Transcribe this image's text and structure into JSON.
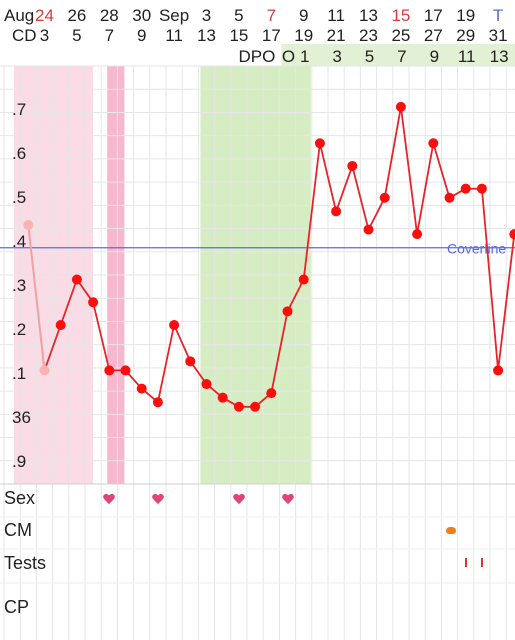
{
  "header": {
    "row1_label": "Aug",
    "row2_label": "CD",
    "dpo_label": "DPO",
    "dates": [
      {
        "text": "24",
        "color": "#d83c3c"
      },
      {
        "text": "26",
        "color": "#222222"
      },
      {
        "text": "28",
        "color": "#222222"
      },
      {
        "text": "30",
        "color": "#222222"
      },
      {
        "text": "Sep",
        "color": "#222222"
      },
      {
        "text": "3",
        "color": "#222222"
      },
      {
        "text": "5",
        "color": "#222222"
      },
      {
        "text": "7",
        "color": "#d83c3c"
      },
      {
        "text": "9",
        "color": "#222222"
      },
      {
        "text": "11",
        "color": "#222222"
      },
      {
        "text": "13",
        "color": "#222222"
      },
      {
        "text": "15",
        "color": "#d83c3c"
      },
      {
        "text": "17",
        "color": "#222222"
      },
      {
        "text": "19",
        "color": "#222222"
      },
      {
        "text": "T",
        "color": "#5b6bd6"
      }
    ],
    "cycle_days": [
      "3",
      "5",
      "7",
      "9",
      "11",
      "13",
      "15",
      "17",
      "19",
      "21",
      "23",
      "25",
      "27",
      "29",
      "31"
    ],
    "dpo": [
      "O",
      "1",
      "3",
      "5",
      "7",
      "9",
      "11",
      "13"
    ]
  },
  "y_axis_labels": [
    ".7",
    ".6",
    ".5",
    ".4",
    ".3",
    ".2",
    ".1",
    "36",
    ".9"
  ],
  "coverline_label": "Coverline",
  "rows": {
    "sex": "Sex",
    "cm": "CM",
    "tests": "Tests",
    "cp": "CP"
  },
  "colors": {
    "period_light": "#fbdbe6",
    "period_dark": "#f6b7cf",
    "fertile": "#d6ecc2",
    "temp_line": "#e8232a",
    "temp_dot": "#ff0c0c",
    "coverline": "#5a6be0"
  },
  "chart_data": {
    "type": "line",
    "title": "",
    "y_unit_note": "",
    "ylim": [
      35.85,
      36.77
    ],
    "coverline": 36.37,
    "x": [
      2,
      3,
      4,
      5,
      6,
      7,
      8,
      9,
      10,
      11,
      12,
      13,
      14,
      15,
      16,
      17,
      18,
      19,
      20,
      21,
      22,
      23,
      24,
      25,
      26,
      27,
      28,
      29,
      30,
      31,
      32
    ],
    "series": [
      {
        "values": [
          36.42,
          36.1,
          36.2,
          36.3,
          36.25,
          36.1,
          36.1,
          36.06,
          36.03,
          36.2,
          36.12,
          36.07,
          36.04,
          36.02,
          36.02,
          36.05,
          36.23,
          36.3,
          36.6,
          36.45,
          36.55,
          36.41,
          36.48,
          36.68,
          36.4,
          36.6,
          36.48,
          36.5,
          36.5,
          36.1,
          36.4
        ]
      }
    ],
    "sex_days": [
      7,
      10,
      15,
      18
    ],
    "cm_days": [
      28
    ],
    "test_days": [
      29,
      30
    ]
  }
}
